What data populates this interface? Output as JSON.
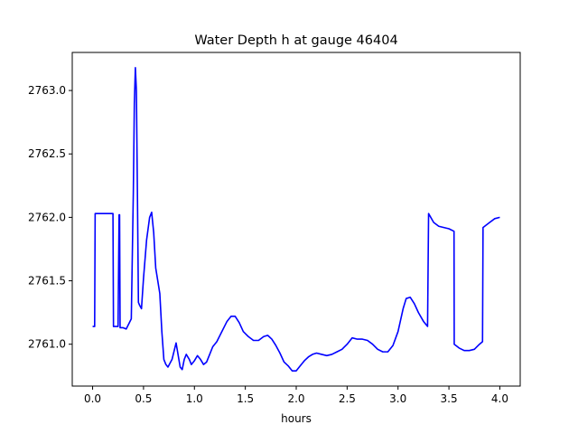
{
  "chart_data": {
    "type": "line",
    "title": "Water Depth h at gauge 46404",
    "xlabel": "hours",
    "ylabel": "",
    "xlim": [
      -0.2,
      4.2
    ],
    "ylim": [
      2760.67,
      2763.3
    ],
    "xticks": [
      0.0,
      0.5,
      1.0,
      1.5,
      2.0,
      2.5,
      3.0,
      3.5,
      4.0
    ],
    "xtick_labels": [
      "0.0",
      "0.5",
      "1.0",
      "1.5",
      "2.0",
      "2.5",
      "3.0",
      "3.5",
      "4.0"
    ],
    "yticks": [
      2761.0,
      2761.5,
      2762.0,
      2762.5,
      2763.0
    ],
    "ytick_labels": [
      "2761.0",
      "2761.5",
      "2762.0",
      "2762.5",
      "2763.0"
    ],
    "grid": false,
    "series": [
      {
        "color": "#0000ff",
        "x": [
          0.0,
          0.02,
          0.025,
          0.1,
          0.2,
          0.205,
          0.25,
          0.26,
          0.265,
          0.27,
          0.3,
          0.33,
          0.38,
          0.4,
          0.41,
          0.42,
          0.43,
          0.44,
          0.45,
          0.46,
          0.48,
          0.5,
          0.53,
          0.56,
          0.58,
          0.6,
          0.62,
          0.64,
          0.66,
          0.68,
          0.7,
          0.72,
          0.74,
          0.78,
          0.82,
          0.86,
          0.88,
          0.9,
          0.92,
          0.95,
          0.97,
          1.0,
          1.03,
          1.06,
          1.09,
          1.12,
          1.15,
          1.18,
          1.22,
          1.27,
          1.32,
          1.36,
          1.4,
          1.44,
          1.48,
          1.53,
          1.58,
          1.63,
          1.68,
          1.72,
          1.76,
          1.8,
          1.84,
          1.88,
          1.92,
          1.96,
          2.0,
          2.04,
          2.08,
          2.12,
          2.16,
          2.2,
          2.25,
          2.3,
          2.35,
          2.4,
          2.45,
          2.5,
          2.55,
          2.6,
          2.65,
          2.7,
          2.75,
          2.8,
          2.85,
          2.9,
          2.95,
          3.0,
          3.05,
          3.08,
          3.12,
          3.16,
          3.2,
          3.25,
          3.29,
          3.3,
          3.35,
          3.4,
          3.45,
          3.5,
          3.55,
          3.552,
          3.6,
          3.65,
          3.7,
          3.75,
          3.8,
          3.83,
          3.835,
          3.9,
          3.95,
          4.0
        ],
        "y": [
          2761.14,
          2761.14,
          2762.03,
          2762.03,
          2762.03,
          2761.14,
          2761.14,
          2762.02,
          2762.02,
          2761.13,
          2761.13,
          2761.12,
          2761.2,
          2762.2,
          2762.9,
          2763.18,
          2763.0,
          2762.2,
          2761.33,
          2761.31,
          2761.28,
          2761.52,
          2761.82,
          2762.0,
          2762.04,
          2761.88,
          2761.6,
          2761.5,
          2761.4,
          2761.1,
          2760.88,
          2760.84,
          2760.82,
          2760.88,
          2761.01,
          2760.82,
          2760.8,
          2760.88,
          2760.92,
          2760.88,
          2760.84,
          2760.87,
          2760.91,
          2760.88,
          2760.84,
          2760.86,
          2760.92,
          2760.98,
          2761.02,
          2761.1,
          2761.18,
          2761.22,
          2761.22,
          2761.17,
          2761.1,
          2761.06,
          2761.03,
          2761.03,
          2761.06,
          2761.07,
          2761.04,
          2760.99,
          2760.93,
          2760.86,
          2760.83,
          2760.79,
          2760.79,
          2760.83,
          2760.87,
          2760.9,
          2760.92,
          2760.93,
          2760.92,
          2760.91,
          2760.92,
          2760.94,
          2760.96,
          2761.0,
          2761.05,
          2761.04,
          2761.04,
          2761.03,
          2761.0,
          2760.96,
          2760.94,
          2760.94,
          2760.99,
          2761.1,
          2761.28,
          2761.36,
          2761.37,
          2761.32,
          2761.25,
          2761.18,
          2761.14,
          2762.03,
          2761.96,
          2761.93,
          2761.92,
          2761.91,
          2761.89,
          2761.0,
          2760.97,
          2760.95,
          2760.95,
          2760.96,
          2761.0,
          2761.02,
          2761.92,
          2761.96,
          2761.99,
          2762.0
        ]
      }
    ]
  }
}
